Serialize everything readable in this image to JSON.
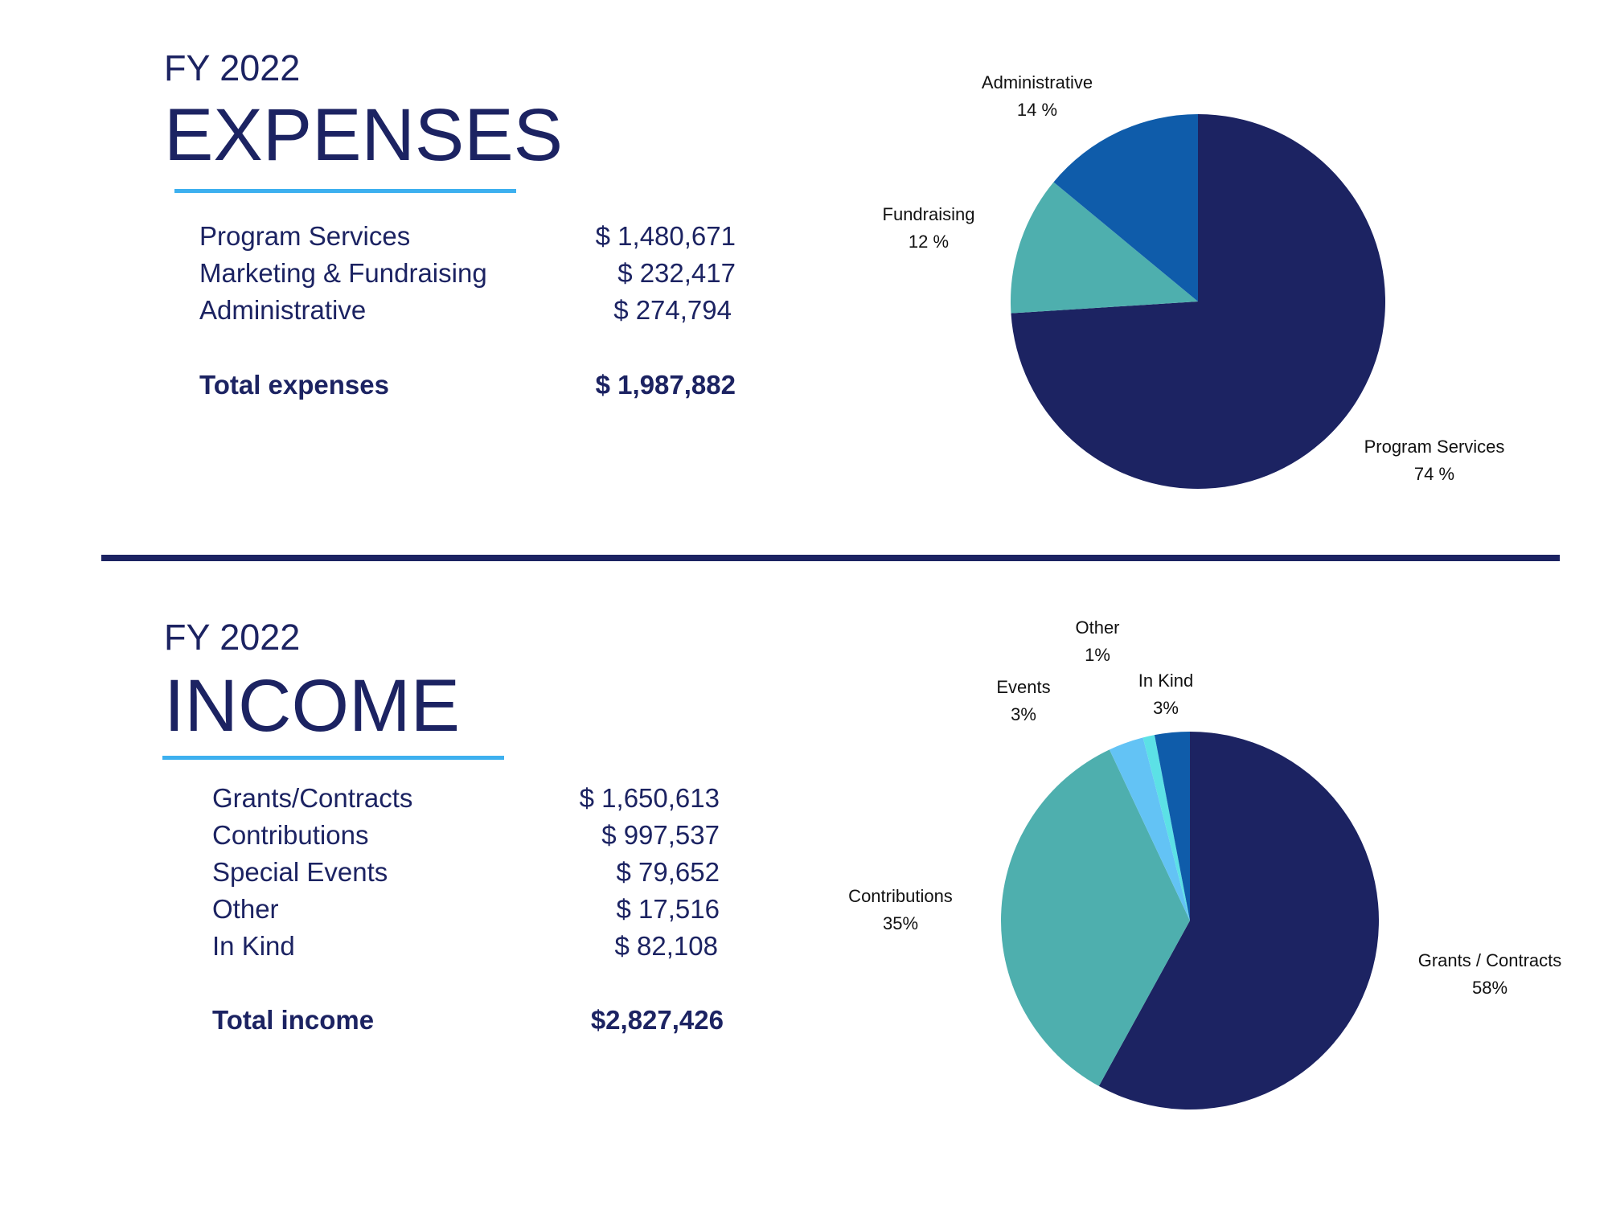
{
  "expenses": {
    "fy": "FY 2022",
    "title": "EXPENSES",
    "items": [
      {
        "label": "Program Services",
        "value": "$ 1,480,671"
      },
      {
        "label": "Marketing & Fundraising",
        "value": "$ 232,417"
      },
      {
        "label": "Administrative",
        "value": "$ 274,794"
      }
    ],
    "total": {
      "label": "Total expenses",
      "value": "$ 1,987,882"
    }
  },
  "income": {
    "fy": "FY 2022",
    "title": "INCOME",
    "items": [
      {
        "label": "Grants/Contracts",
        "value": "$ 1,650,613"
      },
      {
        "label": "Contributions",
        "value": "$ 997,537"
      },
      {
        "label": "Special Events",
        "value": "$ 79,652"
      },
      {
        "label": "Other",
        "value": "$ 17,516"
      },
      {
        "label": "In Kind",
        "value": "$ 82,108"
      }
    ],
    "total": {
      "label": "Total income",
      "value": "$2,827,426"
    }
  },
  "chart_data": [
    {
      "type": "pie",
      "title": "",
      "slices": [
        {
          "name": "Program Services",
          "value": 74,
          "label": "74 %",
          "color": "#1c2362"
        },
        {
          "name": "Fundraising",
          "value": 12,
          "label": "12 %",
          "color": "#4eafae"
        },
        {
          "name": "Administrative",
          "value": 14,
          "label": "14 %",
          "color": "#0f5caa"
        }
      ]
    },
    {
      "type": "pie",
      "title": "",
      "slices": [
        {
          "name": "Grants / Contracts",
          "value": 58,
          "label": "58%",
          "color": "#1c2362"
        },
        {
          "name": "Contributions",
          "value": 35,
          "label": "35%",
          "color": "#4eafae"
        },
        {
          "name": "Events",
          "value": 3,
          "label": "3%",
          "color": "#63c3f5"
        },
        {
          "name": "Other",
          "value": 1,
          "label": "1%",
          "color": "#5ce1e6"
        },
        {
          "name": "In Kind",
          "value": 3,
          "label": "3%",
          "color": "#0f5caa"
        }
      ]
    }
  ]
}
